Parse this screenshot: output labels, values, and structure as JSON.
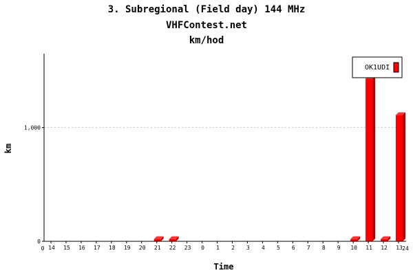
{
  "chart_data": {
    "type": "bar",
    "title": "3. Subregional (Field day) 144 MHz",
    "subtitle": "VHFContest.net",
    "subtitle2": "km/hod",
    "xlabel": "Time",
    "ylabel": "km",
    "ylim": [
      0,
      1650
    ],
    "yticks": [
      0,
      1000
    ],
    "ytick_labels": [
      "0",
      "1,000"
    ],
    "grid": "horizontal dotted",
    "legend_position": "top-right",
    "axis_start_label": "0",
    "axis_end_label": "24",
    "categories": [
      "14",
      "15",
      "16",
      "17",
      "18",
      "19",
      "20",
      "21",
      "22",
      "23",
      "0",
      "1",
      "2",
      "3",
      "4",
      "5",
      "6",
      "7",
      "8",
      "9",
      "10",
      "11",
      "12",
      "13"
    ],
    "series": [
      {
        "name": "OK1UDI",
        "color": "#ff0000",
        "values": [
          0,
          0,
          0,
          0,
          0,
          0,
          0,
          20,
          20,
          0,
          0,
          0,
          0,
          0,
          0,
          0,
          0,
          0,
          0,
          0,
          20,
          1430,
          20,
          1110
        ]
      }
    ]
  }
}
